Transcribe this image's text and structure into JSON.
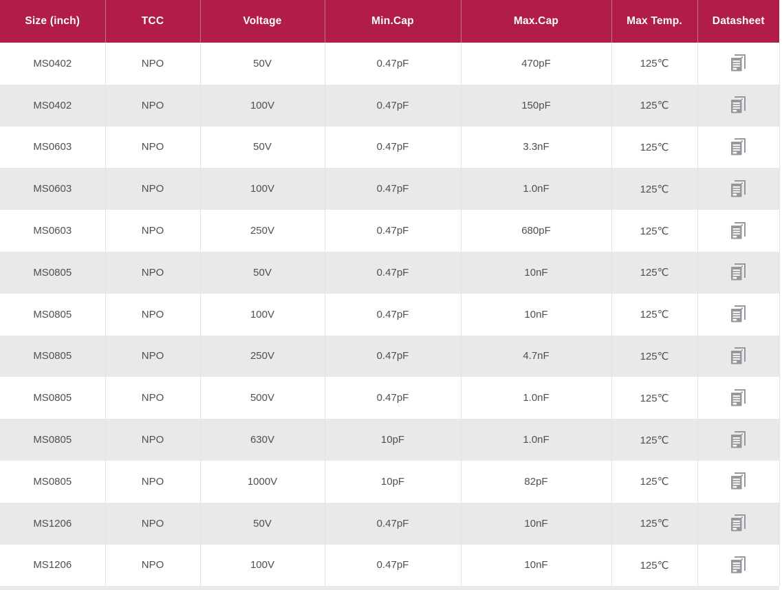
{
  "table": {
    "columns": [
      {
        "label": "Size (inch)"
      },
      {
        "label": "TCC"
      },
      {
        "label": "Voltage"
      },
      {
        "label": "Min.Cap"
      },
      {
        "label": "Max.Cap"
      },
      {
        "label": "Max Temp."
      },
      {
        "label": "Datasheet"
      }
    ],
    "rows": [
      {
        "size": "MS0402",
        "tcc": "NPO",
        "voltage": "50V",
        "min_cap": "0.47pF",
        "max_cap": "470pF",
        "max_temp": "125℃"
      },
      {
        "size": "MS0402",
        "tcc": "NPO",
        "voltage": "100V",
        "min_cap": "0.47pF",
        "max_cap": "150pF",
        "max_temp": "125℃"
      },
      {
        "size": "MS0603",
        "tcc": "NPO",
        "voltage": "50V",
        "min_cap": "0.47pF",
        "max_cap": "3.3nF",
        "max_temp": "125℃"
      },
      {
        "size": "MS0603",
        "tcc": "NPO",
        "voltage": "100V",
        "min_cap": "0.47pF",
        "max_cap": "1.0nF",
        "max_temp": "125℃"
      },
      {
        "size": "MS0603",
        "tcc": "NPO",
        "voltage": "250V",
        "min_cap": "0.47pF",
        "max_cap": "680pF",
        "max_temp": "125℃"
      },
      {
        "size": "MS0805",
        "tcc": "NPO",
        "voltage": "50V",
        "min_cap": "0.47pF",
        "max_cap": "10nF",
        "max_temp": "125℃"
      },
      {
        "size": "MS0805",
        "tcc": "NPO",
        "voltage": "100V",
        "min_cap": "0.47pF",
        "max_cap": "10nF",
        "max_temp": "125℃"
      },
      {
        "size": "MS0805",
        "tcc": "NPO",
        "voltage": "250V",
        "min_cap": "0.47pF",
        "max_cap": "4.7nF",
        "max_temp": "125℃"
      },
      {
        "size": "MS0805",
        "tcc": "NPO",
        "voltage": "500V",
        "min_cap": "0.47pF",
        "max_cap": "1.0nF",
        "max_temp": "125℃"
      },
      {
        "size": "MS0805",
        "tcc": "NPO",
        "voltage": "630V",
        "min_cap": "10pF",
        "max_cap": "1.0nF",
        "max_temp": "125℃"
      },
      {
        "size": "MS0805",
        "tcc": "NPO",
        "voltage": "1000V",
        "min_cap": "10pF",
        "max_cap": "82pF",
        "max_temp": "125℃"
      },
      {
        "size": "MS1206",
        "tcc": "NPO",
        "voltage": "50V",
        "min_cap": "0.47pF",
        "max_cap": "10nF",
        "max_temp": "125℃"
      },
      {
        "size": "MS1206",
        "tcc": "NPO",
        "voltage": "100V",
        "min_cap": "0.47pF",
        "max_cap": "10nF",
        "max_temp": "125℃"
      }
    ],
    "datasheet_icon": "copy-document-icon",
    "colors": {
      "header_bg": "#b11c4b",
      "header_text": "#ffffff",
      "row_bg": "#ffffff",
      "row_alt_bg": "#e9e9e9",
      "body_text": "#4f4f4f",
      "cell_border": "#e3e3e3",
      "icon_gray": "#94979c"
    }
  }
}
